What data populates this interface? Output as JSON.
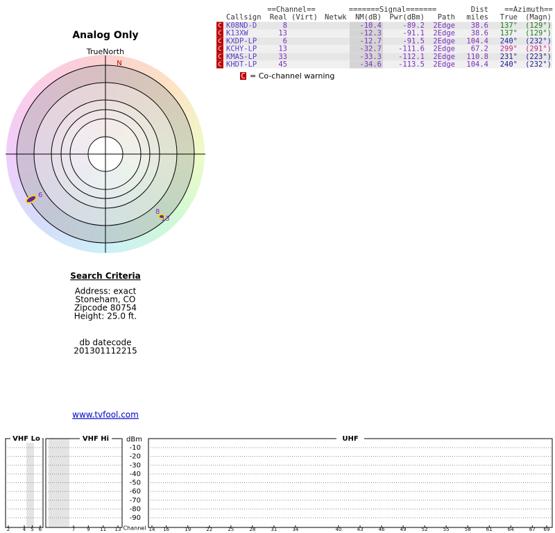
{
  "left": {
    "title": "Analog Only",
    "north_label": "TrueNorth",
    "n_mark": "N",
    "radar_labels": [
      "6",
      "8",
      "13"
    ],
    "criteria_title": "Search Criteria",
    "criteria": [
      "Address: exact",
      "Stoneham, CO",
      "Zipcode 80754",
      "Height: 25.0 ft."
    ],
    "datecode_label": "db datecode",
    "datecode": "201301112215",
    "link": "www.tvfool.com"
  },
  "table": {
    "header_top": {
      "channel": "==Channel==",
      "signal": "=======Signal=======",
      "dist": "Dist",
      "azimuth": "==Azimuth=="
    },
    "header": {
      "callsign": "Callsign",
      "real": "Real",
      "virt": "(Virt)",
      "netwk": "Netwk",
      "nm": "NM(dB)",
      "pwr": "Pwr(dBm)",
      "path": "Path",
      "dist": "miles",
      "true": "True",
      "magn": "(Magn)"
    },
    "rows": [
      {
        "flag": "C",
        "callsign": "K08ND-D",
        "real": 8,
        "nm": -10.4,
        "pwr": -89.2,
        "path": "2Edge",
        "dist": 38.6,
        "true": "137°",
        "magn": "(129°)"
      },
      {
        "flag": "C",
        "callsign": "K13XW",
        "real": 13,
        "nm": -12.3,
        "pwr": -91.1,
        "path": "2Edge",
        "dist": 38.6,
        "true": "137°",
        "magn": "(129°)"
      },
      {
        "flag": "C",
        "callsign": "KXDP-LP",
        "real": 6,
        "nm": -12.7,
        "pwr": -91.5,
        "path": "2Edge",
        "dist": 104.4,
        "true": "240°",
        "magn": "(232°)"
      },
      {
        "flag": "C",
        "callsign": "KCHY-LP",
        "real": 13,
        "nm": -32.7,
        "pwr": -111.6,
        "path": "2Edge",
        "dist": 67.2,
        "true": "299°",
        "magn": "(291°)"
      },
      {
        "flag": "C",
        "callsign": "KMAS-LP",
        "real": 33,
        "nm": -33.3,
        "pwr": -112.1,
        "path": "2Edge",
        "dist": 110.8,
        "true": "231°",
        "magn": "(223°)"
      },
      {
        "flag": "C",
        "callsign": "KHDT-LP",
        "real": 45,
        "nm": -34.6,
        "pwr": -113.5,
        "path": "2Edge",
        "dist": 104.4,
        "true": "240°",
        "magn": "(232°)"
      }
    ],
    "legend_flag": "C",
    "legend": "= Co-channel warning"
  },
  "spectrum": {
    "vhf_lo": "VHF Lo",
    "vhf_hi": "VHF Hi",
    "uhf": "UHF",
    "dbm_label": "dBm",
    "channel_label": "Channel",
    "dbm_ticks": [
      -10,
      -20,
      -30,
      -40,
      -50,
      -60,
      -70,
      -80,
      -90
    ],
    "vhf_lo_channels": [
      2,
      4,
      5,
      6
    ],
    "vhf_hi_channels": [
      7,
      9,
      11,
      13
    ],
    "uhf_channels": [
      14,
      16,
      19,
      22,
      25,
      28,
      31,
      34,
      40,
      43,
      46,
      49,
      52,
      55,
      58,
      61,
      64,
      67,
      69
    ]
  }
}
